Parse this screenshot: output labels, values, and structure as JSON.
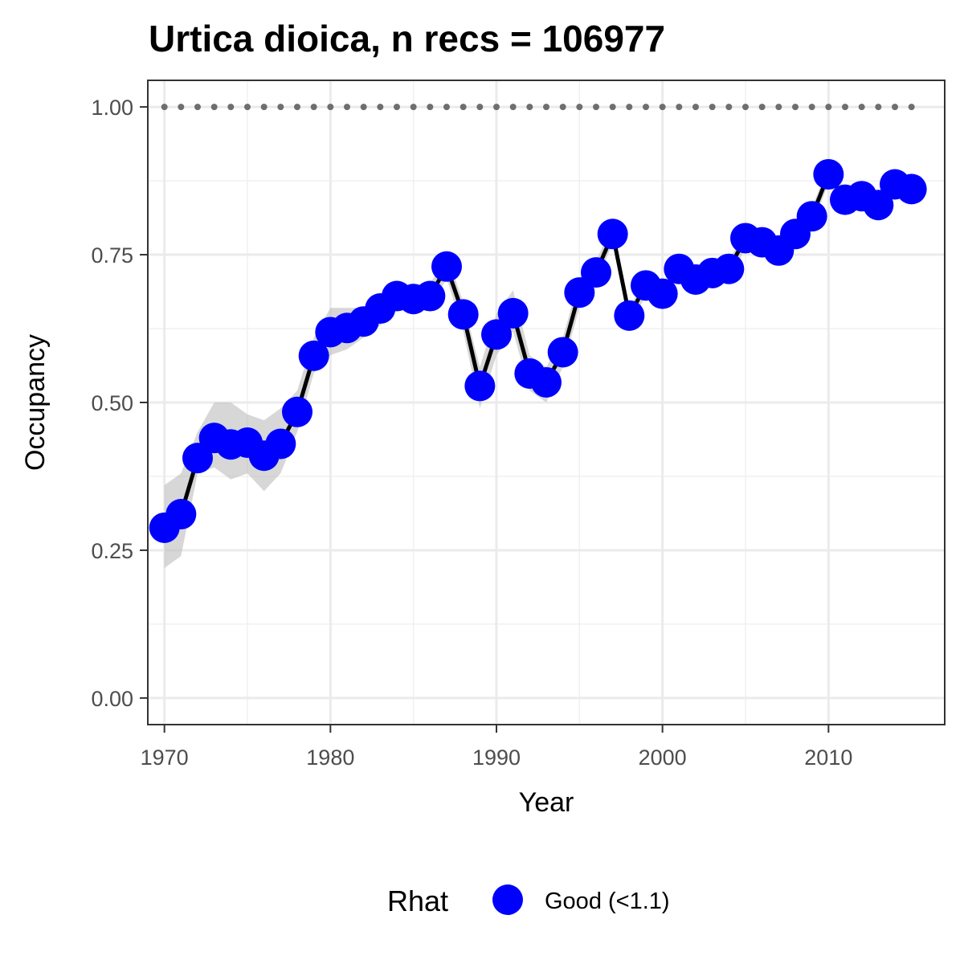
{
  "chart_data": {
    "type": "line",
    "title": "Urtica dioica, n recs = 106977",
    "xlabel": "Year",
    "ylabel": "Occupancy",
    "xlim": [
      1969,
      2017
    ],
    "ylim": [
      -0.045,
      1.045
    ],
    "x_ticks": [
      1970,
      1980,
      1990,
      2000,
      2010
    ],
    "y_ticks": [
      0,
      0.25,
      0.5,
      0.75,
      1.0
    ],
    "x_tick_labels": [
      "1970",
      "1980",
      "1990",
      "2000",
      "2010"
    ],
    "y_tick_labels": [
      "0.00",
      "0.25",
      "0.50",
      "0.75",
      "1.00"
    ],
    "grid": true,
    "colors": {
      "points": "#0000ff",
      "line": "#000000",
      "band": "#bdbdbd",
      "reference": "#6e6e6e"
    },
    "series": [
      {
        "x": [
          1970,
          1971,
          1972,
          1973,
          1974,
          1975,
          1976,
          1977,
          1978,
          1979,
          1980,
          1981,
          1982,
          1983,
          1984,
          1985,
          1986,
          1987,
          1988,
          1989,
          1990,
          1991,
          1992,
          1993,
          1994,
          1995,
          1996,
          1997,
          1998,
          1999,
          2000,
          2001,
          2002,
          2003,
          2004,
          2005,
          2006,
          2007,
          2008,
          2009,
          2010,
          2011,
          2012,
          2013,
          2014,
          2015
        ],
        "y": [
          0.288,
          0.311,
          0.406,
          0.44,
          0.429,
          0.432,
          0.41,
          0.43,
          0.484,
          0.579,
          0.619,
          0.626,
          0.637,
          0.659,
          0.68,
          0.675,
          0.68,
          0.73,
          0.649,
          0.528,
          0.615,
          0.651,
          0.549,
          0.534,
          0.585,
          0.686,
          0.72,
          0.785,
          0.647,
          0.698,
          0.684,
          0.726,
          0.708,
          0.719,
          0.726,
          0.778,
          0.771,
          0.757,
          0.785,
          0.815,
          0.886,
          0.843,
          0.849,
          0.834,
          0.869,
          0.861
        ],
        "lower": [
          0.22,
          0.24,
          0.38,
          0.39,
          0.37,
          0.38,
          0.35,
          0.38,
          0.45,
          0.55,
          0.58,
          0.59,
          0.61,
          0.63,
          0.66,
          0.66,
          0.66,
          0.71,
          0.62,
          0.49,
          0.58,
          0.62,
          0.52,
          0.5,
          0.56,
          0.66,
          0.7,
          0.77,
          0.63,
          0.68,
          0.67,
          0.71,
          0.69,
          0.7,
          0.71,
          0.76,
          0.76,
          0.74,
          0.77,
          0.8,
          0.87,
          0.83,
          0.84,
          0.82,
          0.86,
          0.85
        ],
        "upper": [
          0.36,
          0.38,
          0.45,
          0.5,
          0.5,
          0.48,
          0.47,
          0.49,
          0.52,
          0.61,
          0.66,
          0.66,
          0.66,
          0.68,
          0.7,
          0.69,
          0.7,
          0.75,
          0.67,
          0.56,
          0.65,
          0.69,
          0.58,
          0.56,
          0.61,
          0.71,
          0.74,
          0.8,
          0.66,
          0.71,
          0.7,
          0.74,
          0.72,
          0.73,
          0.74,
          0.79,
          0.78,
          0.77,
          0.8,
          0.83,
          0.9,
          0.86,
          0.86,
          0.85,
          0.88,
          0.87
        ]
      }
    ],
    "reference_line": {
      "y": 1.0,
      "style": "dotted",
      "x_range": [
        1970,
        2015
      ]
    },
    "legend": {
      "position": "bottom",
      "title": "Rhat",
      "entries": [
        "Good (<1.1)"
      ]
    }
  }
}
